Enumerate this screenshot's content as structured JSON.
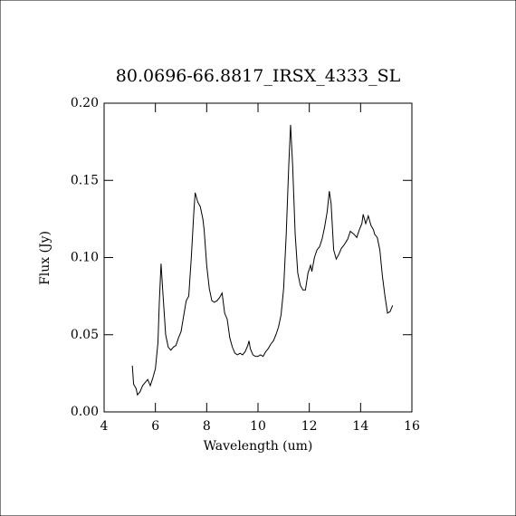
{
  "chart_data": {
    "type": "line",
    "title": "80.0696-66.8817_IRSX_4333_SL",
    "xlabel": "Wavelength (um)",
    "ylabel": "Flux (Jy)",
    "color": "#000000",
    "x": [
      5.1,
      5.15,
      5.25,
      5.3,
      5.4,
      5.5,
      5.6,
      5.7,
      5.8,
      5.9,
      6.0,
      6.1,
      6.15,
      6.22,
      6.3,
      6.4,
      6.5,
      6.6,
      6.7,
      6.8,
      6.9,
      7.0,
      7.1,
      7.2,
      7.3,
      7.4,
      7.5,
      7.55,
      7.65,
      7.75,
      7.85,
      7.9,
      8.0,
      8.1,
      8.2,
      8.3,
      8.4,
      8.5,
      8.6,
      8.7,
      8.8,
      8.9,
      9.0,
      9.1,
      9.2,
      9.3,
      9.4,
      9.5,
      9.6,
      9.65,
      9.7,
      9.8,
      9.9,
      10.0,
      10.1,
      10.2,
      10.3,
      10.4,
      10.5,
      10.6,
      10.7,
      10.8,
      10.9,
      11.0,
      11.1,
      11.2,
      11.27,
      11.35,
      11.45,
      11.55,
      11.65,
      11.75,
      11.85,
      11.95,
      12.05,
      12.1,
      12.2,
      12.3,
      12.4,
      12.5,
      12.6,
      12.7,
      12.78,
      12.85,
      12.95,
      13.05,
      13.15,
      13.25,
      13.35,
      13.5,
      13.6,
      13.75,
      13.85,
      13.95,
      14.05,
      14.1,
      14.2,
      14.3,
      14.4,
      14.5,
      14.55,
      14.65,
      14.75,
      14.85,
      14.95,
      15.05,
      15.15,
      15.25
    ],
    "values": [
      0.03,
      0.018,
      0.015,
      0.011,
      0.013,
      0.017,
      0.019,
      0.021,
      0.017,
      0.022,
      0.028,
      0.045,
      0.07,
      0.096,
      0.075,
      0.05,
      0.042,
      0.04,
      0.042,
      0.043,
      0.048,
      0.052,
      0.062,
      0.072,
      0.075,
      0.1,
      0.13,
      0.142,
      0.136,
      0.133,
      0.125,
      0.118,
      0.095,
      0.08,
      0.072,
      0.071,
      0.072,
      0.074,
      0.077,
      0.064,
      0.06,
      0.048,
      0.042,
      0.038,
      0.037,
      0.038,
      0.037,
      0.039,
      0.043,
      0.046,
      0.041,
      0.037,
      0.036,
      0.036,
      0.037,
      0.036,
      0.039,
      0.041,
      0.044,
      0.046,
      0.05,
      0.055,
      0.063,
      0.08,
      0.115,
      0.16,
      0.186,
      0.16,
      0.115,
      0.09,
      0.082,
      0.079,
      0.079,
      0.09,
      0.095,
      0.091,
      0.1,
      0.105,
      0.107,
      0.112,
      0.12,
      0.13,
      0.143,
      0.135,
      0.105,
      0.099,
      0.102,
      0.106,
      0.108,
      0.112,
      0.117,
      0.115,
      0.113,
      0.118,
      0.122,
      0.128,
      0.122,
      0.127,
      0.121,
      0.118,
      0.115,
      0.113,
      0.105,
      0.088,
      0.075,
      0.064,
      0.065,
      0.069
    ],
    "xlim": [
      4,
      16
    ],
    "xticks": [
      4,
      6,
      8,
      10,
      12,
      14,
      16
    ],
    "ylim": [
      0,
      0.2
    ],
    "yticks": [
      {
        "value": 0,
        "label": "0.00"
      },
      {
        "value": 0.05,
        "label": "0.05"
      },
      {
        "value": 0.1,
        "label": "0.10"
      },
      {
        "value": 0.15,
        "label": "0.15"
      },
      {
        "value": 0.2,
        "label": "0.20"
      }
    ]
  }
}
